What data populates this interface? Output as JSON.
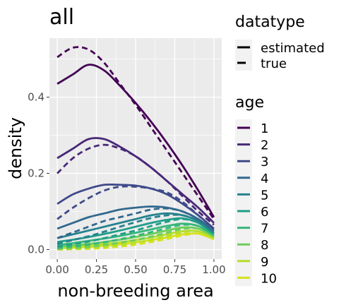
{
  "chart_data": {
    "type": "line",
    "title": "all",
    "xlabel": "non-breeding area",
    "ylabel": "density",
    "xlim": [
      -0.05,
      1.05
    ],
    "ylim": [
      -0.025,
      0.555
    ],
    "x_ticks": [
      0.0,
      0.25,
      0.5,
      0.75,
      1.0
    ],
    "x_tick_labels": [
      "0.00",
      "0.25",
      "0.50",
      "0.75",
      "1.00"
    ],
    "y_ticks": [
      0.0,
      0.2,
      0.4
    ],
    "y_tick_labels": [
      "0.0",
      "0.2",
      "0.4"
    ],
    "grid": true,
    "legend_datatype": {
      "title": "datatype",
      "entries": [
        {
          "label": "estimated",
          "linetype": "solid"
        },
        {
          "label": "true",
          "linetype": "dashed"
        }
      ]
    },
    "legend_age": {
      "title": "age",
      "entries": [
        "1",
        "2",
        "3",
        "4",
        "5",
        "6",
        "7",
        "8",
        "9",
        "10"
      ]
    },
    "colors": [
      "#440154",
      "#482878",
      "#3E4A89",
      "#31688E",
      "#26828E",
      "#1F9E89",
      "#35B779",
      "#6DCD59",
      "#B4DE2C",
      "#D5E21A"
    ],
    "x": [
      0.0,
      0.1,
      0.2,
      0.3,
      0.4,
      0.5,
      0.6,
      0.7,
      0.8,
      0.9,
      1.0
    ],
    "series": [
      {
        "name": "1",
        "datatype": "estimated",
        "values": [
          0.435,
          0.46,
          0.485,
          0.47,
          0.43,
          0.385,
          0.335,
          0.28,
          0.22,
          0.155,
          0.085
        ]
      },
      {
        "name": "1",
        "datatype": "true",
        "values": [
          0.505,
          0.53,
          0.525,
          0.49,
          0.435,
          0.38,
          0.32,
          0.26,
          0.2,
          0.14,
          0.08
        ]
      },
      {
        "name": "2",
        "datatype": "estimated",
        "values": [
          0.24,
          0.265,
          0.29,
          0.29,
          0.27,
          0.245,
          0.215,
          0.18,
          0.145,
          0.11,
          0.07
        ]
      },
      {
        "name": "2",
        "datatype": "true",
        "values": [
          0.2,
          0.24,
          0.265,
          0.275,
          0.265,
          0.245,
          0.215,
          0.18,
          0.14,
          0.1,
          0.065
        ]
      },
      {
        "name": "3",
        "datatype": "estimated",
        "values": [
          0.12,
          0.145,
          0.16,
          0.17,
          0.17,
          0.168,
          0.16,
          0.145,
          0.12,
          0.09,
          0.055
        ]
      },
      {
        "name": "3",
        "datatype": "true",
        "values": [
          0.08,
          0.11,
          0.135,
          0.155,
          0.165,
          0.165,
          0.16,
          0.15,
          0.125,
          0.09,
          0.055
        ]
      },
      {
        "name": "4",
        "datatype": "estimated",
        "values": [
          0.055,
          0.07,
          0.085,
          0.095,
          0.105,
          0.11,
          0.113,
          0.11,
          0.1,
          0.08,
          0.05
        ]
      },
      {
        "name": "4",
        "datatype": "true",
        "values": [
          0.03,
          0.045,
          0.06,
          0.075,
          0.085,
          0.095,
          0.105,
          0.108,
          0.1,
          0.08,
          0.05
        ]
      },
      {
        "name": "5",
        "datatype": "estimated",
        "values": [
          0.03,
          0.04,
          0.05,
          0.06,
          0.07,
          0.08,
          0.09,
          0.095,
          0.09,
          0.075,
          0.045
        ]
      },
      {
        "name": "5",
        "datatype": "true",
        "values": [
          0.015,
          0.025,
          0.035,
          0.047,
          0.06,
          0.072,
          0.083,
          0.09,
          0.09,
          0.075,
          0.045
        ]
      },
      {
        "name": "6",
        "datatype": "estimated",
        "values": [
          0.02,
          0.026,
          0.033,
          0.041,
          0.05,
          0.06,
          0.07,
          0.078,
          0.082,
          0.07,
          0.042
        ]
      },
      {
        "name": "6",
        "datatype": "true",
        "values": [
          0.008,
          0.014,
          0.021,
          0.03,
          0.04,
          0.05,
          0.062,
          0.073,
          0.08,
          0.07,
          0.042
        ]
      },
      {
        "name": "7",
        "datatype": "estimated",
        "values": [
          0.012,
          0.017,
          0.023,
          0.029,
          0.036,
          0.044,
          0.053,
          0.062,
          0.068,
          0.062,
          0.038
        ]
      },
      {
        "name": "7",
        "datatype": "true",
        "values": [
          0.004,
          0.008,
          0.013,
          0.019,
          0.027,
          0.036,
          0.046,
          0.056,
          0.065,
          0.062,
          0.038
        ]
      },
      {
        "name": "8",
        "datatype": "estimated",
        "values": [
          0.008,
          0.011,
          0.015,
          0.02,
          0.026,
          0.033,
          0.041,
          0.05,
          0.058,
          0.055,
          0.034
        ]
      },
      {
        "name": "8",
        "datatype": "true",
        "values": [
          0.002,
          0.004,
          0.007,
          0.012,
          0.018,
          0.025,
          0.034,
          0.044,
          0.054,
          0.055,
          0.035
        ]
      },
      {
        "name": "9",
        "datatype": "estimated",
        "values": [
          0.005,
          0.007,
          0.01,
          0.014,
          0.019,
          0.025,
          0.032,
          0.04,
          0.048,
          0.048,
          0.03
        ]
      },
      {
        "name": "9",
        "datatype": "true",
        "values": [
          0.001,
          0.002,
          0.004,
          0.007,
          0.012,
          0.018,
          0.026,
          0.035,
          0.045,
          0.048,
          0.031
        ]
      },
      {
        "name": "10",
        "datatype": "estimated",
        "values": [
          0.003,
          0.005,
          0.007,
          0.01,
          0.014,
          0.019,
          0.025,
          0.032,
          0.04,
          0.042,
          0.027
        ]
      },
      {
        "name": "10",
        "datatype": "true",
        "values": [
          0.0,
          0.001,
          0.002,
          0.004,
          0.008,
          0.013,
          0.02,
          0.028,
          0.037,
          0.042,
          0.028
        ]
      }
    ]
  }
}
